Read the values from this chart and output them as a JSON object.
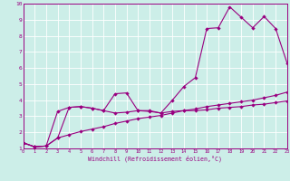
{
  "background_color": "#cceee8",
  "line_color": "#990080",
  "grid_color": "#ffffff",
  "xlabel": "Windchill (Refroidissement éolien,°C)",
  "xlim": [
    0,
    23
  ],
  "ylim": [
    1,
    10
  ],
  "xtick_labels": [
    "0",
    "1",
    "2",
    "3",
    "4",
    "5",
    "6",
    "7",
    "8",
    "9",
    "10",
    "11",
    "12",
    "13",
    "14",
    "15",
    "16",
    "17",
    "18",
    "19",
    "20",
    "21",
    "22",
    "23"
  ],
  "ytick_labels": [
    "1",
    "2",
    "3",
    "4",
    "5",
    "6",
    "7",
    "8",
    "9",
    "10"
  ],
  "line1_x": [
    0,
    1,
    2,
    3,
    4,
    5,
    6,
    7,
    8,
    9,
    10,
    11,
    12,
    13,
    14,
    15,
    16,
    17,
    18,
    19,
    20,
    21,
    22,
    23
  ],
  "line1_y": [
    1.35,
    1.1,
    1.15,
    1.65,
    1.85,
    2.05,
    2.2,
    2.35,
    2.55,
    2.7,
    2.85,
    2.95,
    3.05,
    3.2,
    3.35,
    3.45,
    3.6,
    3.7,
    3.8,
    3.9,
    4.0,
    4.15,
    4.3,
    4.5
  ],
  "line2_x": [
    0,
    1,
    2,
    3,
    4,
    5,
    6,
    7,
    8,
    9,
    10,
    11,
    12,
    13,
    14,
    15,
    16,
    17,
    18,
    19,
    20,
    21,
    22,
    23
  ],
  "line2_y": [
    1.35,
    1.1,
    1.15,
    1.65,
    3.55,
    3.6,
    3.5,
    3.35,
    3.2,
    3.25,
    3.35,
    3.35,
    3.2,
    3.3,
    3.35,
    3.35,
    3.4,
    3.5,
    3.55,
    3.6,
    3.7,
    3.75,
    3.85,
    3.95
  ],
  "line3_x": [
    0,
    1,
    2,
    3,
    4,
    5,
    6,
    7,
    8,
    9,
    10,
    11,
    12,
    13,
    14,
    15,
    16,
    17,
    18,
    19,
    20,
    21,
    22,
    23
  ],
  "line3_y": [
    1.35,
    1.1,
    1.15,
    3.3,
    3.55,
    3.6,
    3.5,
    3.35,
    4.4,
    4.45,
    3.35,
    3.3,
    3.2,
    4.0,
    4.85,
    5.4,
    8.45,
    8.5,
    9.8,
    9.15,
    8.5,
    9.2,
    8.45,
    6.3
  ]
}
